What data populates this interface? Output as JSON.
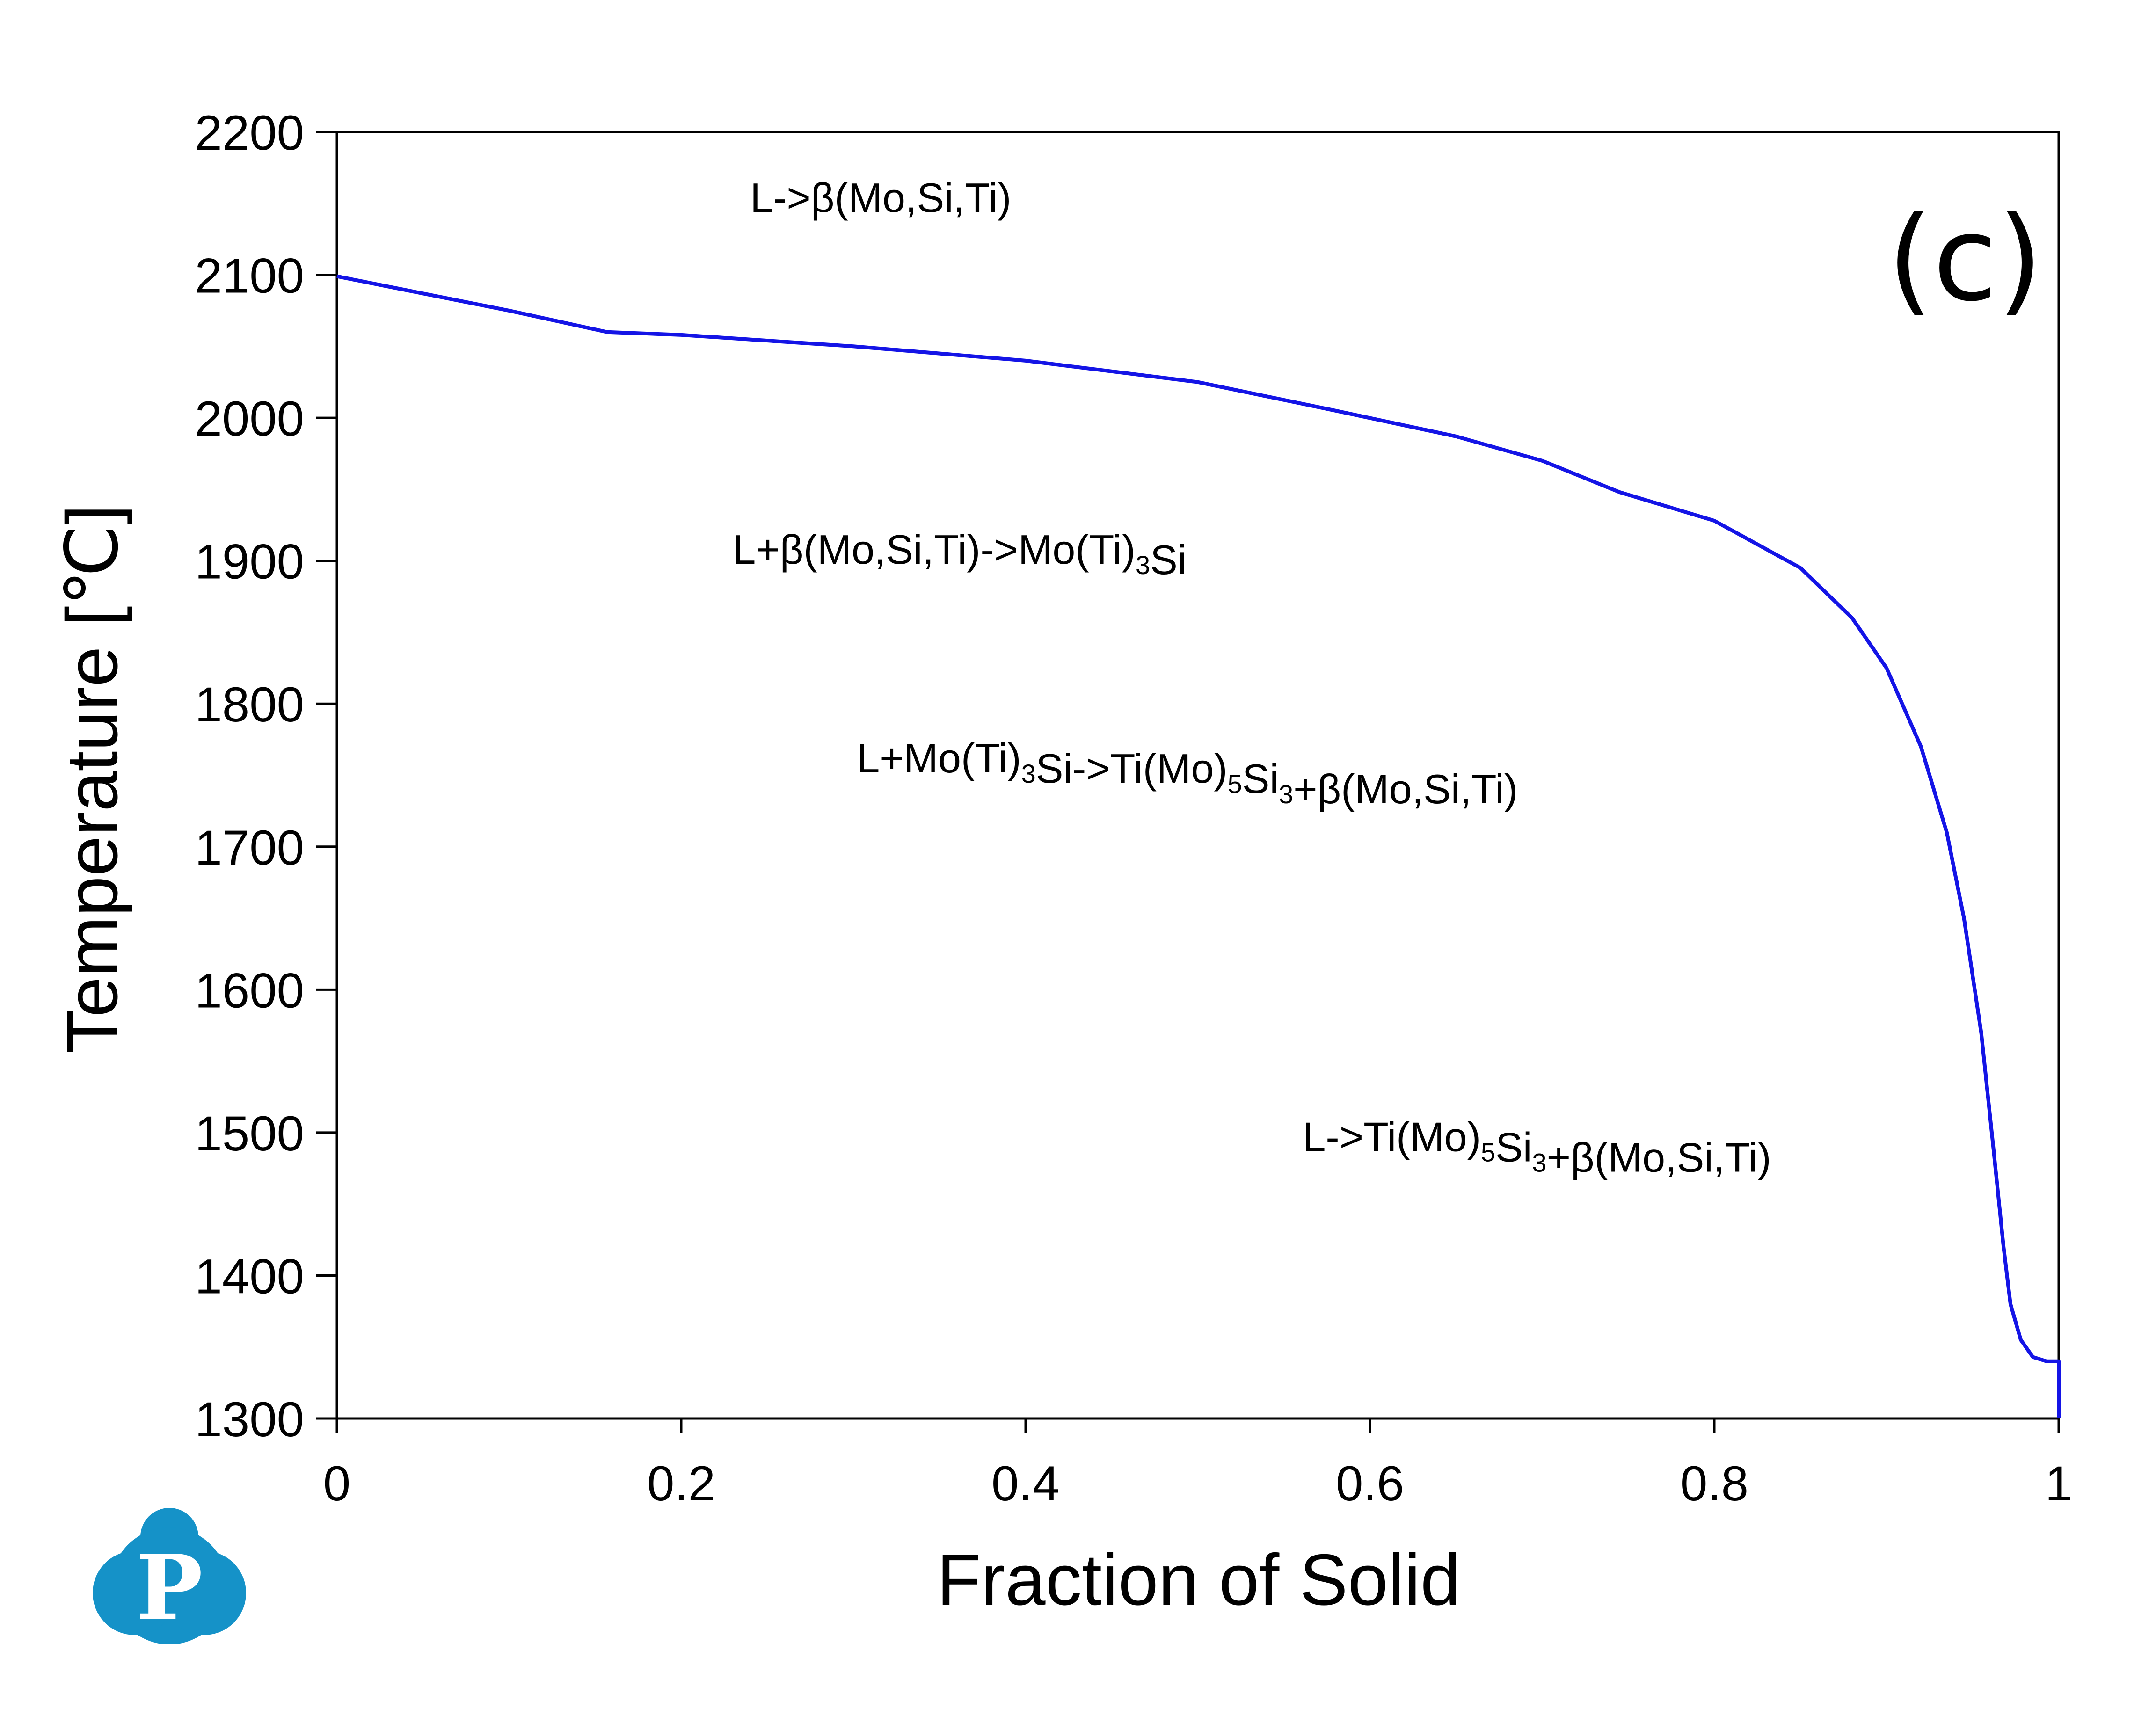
{
  "chart_data": {
    "type": "line",
    "title": "",
    "panel_label": "(c)",
    "xlabel": "Fraction of Solid",
    "ylabel": "Temperature [℃]",
    "xlim": [
      0,
      1
    ],
    "ylim": [
      1300,
      2200
    ],
    "x_ticks": [
      {
        "value": 0,
        "label": "0"
      },
      {
        "value": 0.2,
        "label": "0.2"
      },
      {
        "value": 0.4,
        "label": "0.4"
      },
      {
        "value": 0.6,
        "label": "0.6"
      },
      {
        "value": 0.8,
        "label": "0.8"
      },
      {
        "value": 1,
        "label": "1"
      }
    ],
    "y_ticks": [
      {
        "value": 1300,
        "label": "1300"
      },
      {
        "value": 1400,
        "label": "1400"
      },
      {
        "value": 1500,
        "label": "1500"
      },
      {
        "value": 1600,
        "label": "1600"
      },
      {
        "value": 1700,
        "label": "1700"
      },
      {
        "value": 1800,
        "label": "1800"
      },
      {
        "value": 1900,
        "label": "1900"
      },
      {
        "value": 2000,
        "label": "2000"
      },
      {
        "value": 2100,
        "label": "2100"
      },
      {
        "value": 2200,
        "label": "2200"
      }
    ],
    "grid": false,
    "series": [
      {
        "color": "#1414e6",
        "x": [
          0,
          0.05,
          0.1,
          0.157,
          0.2,
          0.3,
          0.4,
          0.5,
          0.58,
          0.65,
          0.7,
          0.745,
          0.8,
          0.85,
          0.88,
          0.9,
          0.92,
          0.935,
          0.945,
          0.955,
          0.962,
          0.968,
          0.972,
          0.978,
          0.985,
          0.993,
          1,
          1
        ],
        "y": [
          2099,
          2087,
          2075,
          2060,
          2058,
          2050,
          2040,
          2025,
          2005,
          1987,
          1970,
          1948,
          1928,
          1895,
          1860,
          1825,
          1770,
          1710,
          1650,
          1570,
          1490,
          1420,
          1380,
          1355,
          1343,
          1340,
          1340,
          1300
        ]
      }
    ],
    "annotations": [
      {
        "parts": [
          {
            "text": "L->β(Mo,Si,Ti)"
          }
        ],
        "x": 0.24,
        "y": 2144
      },
      {
        "parts": [
          {
            "text": "L+β(Mo,Si,Ti)->Mo(Ti)"
          },
          {
            "text": "3",
            "sub": true
          },
          {
            "text": "Si"
          }
        ],
        "x": 0.23,
        "y": 1898
      },
      {
        "parts": [
          {
            "text": "L+Mo(Ti)"
          },
          {
            "text": "3",
            "sub": true
          },
          {
            "text": "Si->Ti(Mo)"
          },
          {
            "text": "5",
            "sub": true
          },
          {
            "text": "Si"
          },
          {
            "text": "3",
            "sub": true
          },
          {
            "text": "+β(Mo,Si,Ti)"
          }
        ],
        "x": 0.302,
        "y": 1752
      },
      {
        "parts": [
          {
            "text": "L->Ti(Mo)"
          },
          {
            "text": "5",
            "sub": true
          },
          {
            "text": "Si"
          },
          {
            "text": "3",
            "sub": true
          },
          {
            "text": "+β(Mo,Si,Ti)"
          }
        ],
        "x": 0.561,
        "y": 1487
      }
    ]
  },
  "logo": {
    "letter": "P",
    "color": "#1592c8"
  }
}
